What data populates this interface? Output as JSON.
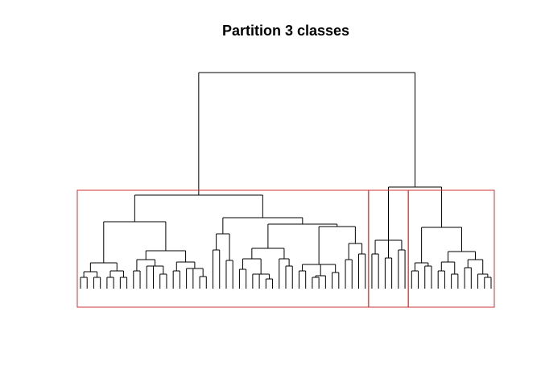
{
  "title": "Partition 3 classes",
  "colors": {
    "tree": "#000000",
    "cluster_box": "#cc3333"
  },
  "chart_data": {
    "type": "dendrogram",
    "title": "Partition 3 classes",
    "n_leaves": 90,
    "n_clusters": 3,
    "cluster_sizes": [
      64,
      6,
      20
    ],
    "xlabel": "",
    "ylabel": ""
  }
}
